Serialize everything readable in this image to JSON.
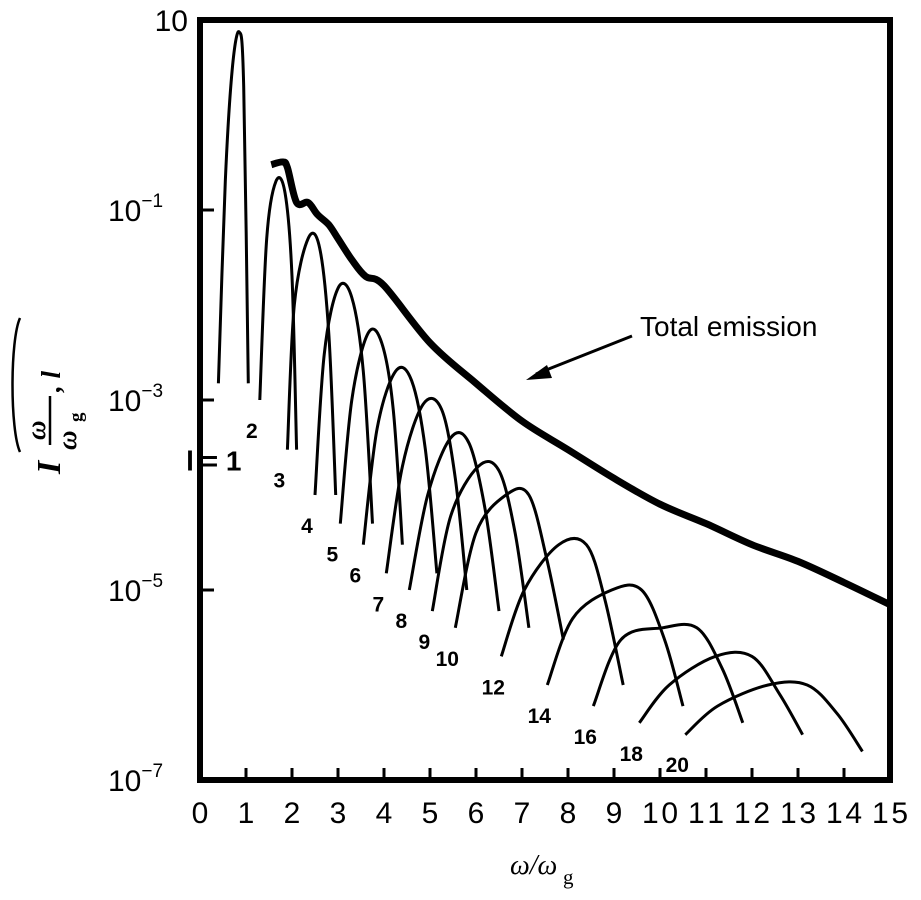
{
  "chart_data": {
    "type": "line",
    "title": "",
    "xlabel": "ω/ω",
    "xlabel_sub": "g",
    "ylabel": "I",
    "ylabel_num": "ω",
    "ylabel_den": "ω",
    "ylabel_den_sub": "g",
    "ylabel_arg": ", l",
    "xlim": [
      0,
      15
    ],
    "ylim": [
      1e-07,
      10
    ],
    "yscale": "log",
    "grid": false,
    "legend": "none",
    "x_ticks": [
      {
        "v": 0,
        "label": "0"
      },
      {
        "v": 1,
        "label": "1"
      },
      {
        "v": 2,
        "label": "2"
      },
      {
        "v": 3,
        "label": "3"
      },
      {
        "v": 4,
        "label": "4"
      },
      {
        "v": 5,
        "label": "5"
      },
      {
        "v": 6,
        "label": "6"
      },
      {
        "v": 7,
        "label": "7"
      },
      {
        "v": 8,
        "label": "8"
      },
      {
        "v": 9,
        "label": "9"
      },
      {
        "v": 10,
        "label": "10"
      },
      {
        "v": 11,
        "label": "11"
      },
      {
        "v": 12,
        "label": "12"
      },
      {
        "v": 13,
        "label": "13"
      },
      {
        "v": 14,
        "label": "14"
      },
      {
        "v": 15,
        "label": "15"
      }
    ],
    "y_ticks": [
      {
        "v": 10,
        "base": "10",
        "exp": ""
      },
      {
        "v": 0.1,
        "base": "10",
        "exp": "−1"
      },
      {
        "v": 0.001,
        "base": "10",
        "exp": "−3"
      },
      {
        "v": 1e-05,
        "base": "10",
        "exp": "−5"
      },
      {
        "v": 1e-07,
        "base": "10",
        "exp": "−7"
      }
    ],
    "harmonics": [
      {
        "l": 1,
        "label": "l = 1",
        "x": [
          0.4,
          0.55,
          0.7,
          0.85,
          0.95,
          1.05
        ],
        "y": [
          0.0015,
          0.2,
          3.0,
          7.5,
          2.0,
          0.0015
        ]
      },
      {
        "l": 2,
        "label": "2",
        "x": [
          1.3,
          1.45,
          1.65,
          1.85,
          2.0,
          2.1
        ],
        "y": [
          0.001,
          0.05,
          0.2,
          0.15,
          0.02,
          0.0003
        ]
      },
      {
        "l": 3,
        "label": "3",
        "x": [
          1.9,
          2.05,
          2.35,
          2.6,
          2.8,
          2.95
        ],
        "y": [
          0.0003,
          0.01,
          0.05,
          0.04,
          0.005,
          0.0001
        ]
      },
      {
        "l": 4,
        "label": "4",
        "x": [
          2.5,
          2.7,
          3.0,
          3.3,
          3.55,
          3.75
        ],
        "y": [
          0.0001,
          0.003,
          0.015,
          0.012,
          0.002,
          5e-05
        ]
      },
      {
        "l": 5,
        "label": "5",
        "x": [
          3.05,
          3.3,
          3.65,
          3.95,
          4.2,
          4.4
        ],
        "y": [
          5e-05,
          0.001,
          0.005,
          0.004,
          0.0008,
          3e-05
        ]
      },
      {
        "l": 6,
        "label": "6",
        "x": [
          3.55,
          3.85,
          4.25,
          4.6,
          4.9,
          5.15
        ],
        "y": [
          3e-05,
          0.0005,
          0.002,
          0.0016,
          0.0003,
          1.5e-05
        ]
      },
      {
        "l": 7,
        "label": "7",
        "x": [
          4.05,
          4.4,
          4.85,
          5.25,
          5.55,
          5.8
        ],
        "y": [
          1.5e-05,
          0.0002,
          0.0009,
          0.0008,
          0.00015,
          1e-05
        ]
      },
      {
        "l": 8,
        "label": "8",
        "x": [
          4.55,
          4.95,
          5.45,
          5.85,
          6.2,
          6.5
        ],
        "y": [
          1e-05,
          0.0001,
          0.0004,
          0.00035,
          7e-05,
          6e-06
        ]
      },
      {
        "l": 9,
        "label": "9",
        "x": [
          5.05,
          5.45,
          6.05,
          6.5,
          6.85,
          7.15
        ],
        "y": [
          6e-06,
          6e-05,
          0.0002,
          0.00018,
          4e-05,
          4e-06
        ]
      },
      {
        "l": 10,
        "label": "10",
        "x": [
          5.55,
          6.0,
          6.65,
          7.15,
          7.55,
          7.9
        ],
        "y": [
          4e-06,
          4e-05,
          0.0001,
          0.0001,
          2e-05,
          3e-06
        ]
      },
      {
        "l": 12,
        "label": "12",
        "x": [
          6.55,
          7.05,
          7.8,
          8.4,
          8.8,
          9.2
        ],
        "y": [
          2e-06,
          1e-05,
          3e-05,
          3e-05,
          8e-06,
          1e-06
        ]
      },
      {
        "l": 14,
        "label": "14",
        "x": [
          7.55,
          8.1,
          8.95,
          9.6,
          10.1,
          10.5
        ],
        "y": [
          1e-06,
          5e-06,
          1e-05,
          1e-05,
          3e-06,
          6e-07
        ]
      },
      {
        "l": 16,
        "label": "16",
        "x": [
          8.55,
          9.15,
          10.05,
          10.8,
          11.35,
          11.8
        ],
        "y": [
          6e-07,
          3e-06,
          4e-06,
          4e-06,
          1.5e-06,
          4e-07
        ]
      },
      {
        "l": 18,
        "label": "18",
        "x": [
          9.55,
          10.2,
          11.2,
          12.0,
          12.6,
          13.1
        ],
        "y": [
          4e-07,
          1e-06,
          2e-06,
          2e-06,
          8e-07,
          3e-07
        ]
      },
      {
        "l": 20,
        "label": "20",
        "x": [
          10.55,
          11.25,
          12.35,
          13.2,
          13.85,
          14.4
        ],
        "y": [
          3e-07,
          6e-07,
          1e-06,
          1e-06,
          5e-07,
          2e-07
        ]
      }
    ],
    "total_emission": {
      "label": "Total emission",
      "x": [
        1.55,
        1.8,
        1.9,
        2.1,
        2.35,
        2.55,
        2.8,
        3.0,
        3.3,
        3.6,
        4.0,
        5.0,
        6.0,
        7.0,
        8.0,
        9.0,
        10.0,
        11.0,
        12.0,
        13.0,
        14.0,
        15.0
      ],
      "y": [
        0.3,
        0.32,
        0.28,
        0.12,
        0.12,
        0.09,
        0.07,
        0.05,
        0.03,
        0.02,
        0.016,
        0.004,
        0.0015,
        0.0006,
        0.0003,
        0.00015,
        8e-05,
        5e-05,
        3e-05,
        2e-05,
        1.2e-05,
        7e-06
      ]
    }
  }
}
